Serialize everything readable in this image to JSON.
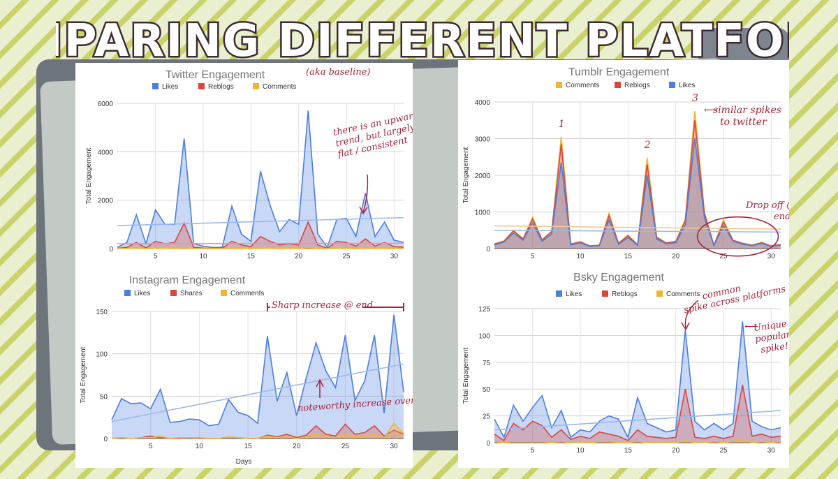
{
  "page_title": "COMPARING DIFFERENT PLATFORMS",
  "colors": {
    "blue": "#4a7ee0",
    "red": "#d9473d",
    "yellow": "#f2b531",
    "annot": "#a7243a"
  },
  "chart_data": [
    {
      "id": "twitter",
      "type": "area",
      "title": "Twitter Engagement",
      "xlabel": "",
      "ylabel": "Total Engagement",
      "xlim": [
        1,
        31
      ],
      "ylim": [
        0,
        6000
      ],
      "yticks": [
        0,
        2000,
        4000,
        6000
      ],
      "xticks": [
        5,
        10,
        15,
        20,
        25,
        30
      ],
      "legend": [
        "Likes",
        "Reblogs",
        "Comments"
      ],
      "x": [
        1,
        2,
        3,
        4,
        5,
        6,
        7,
        8,
        9,
        10,
        11,
        12,
        13,
        14,
        15,
        16,
        17,
        18,
        19,
        20,
        21,
        22,
        23,
        24,
        25,
        26,
        27,
        28,
        29,
        30,
        31
      ],
      "series": [
        {
          "name": "Likes",
          "color": "#4a7ee0",
          "values": [
            50,
            250,
            1400,
            200,
            1600,
            1000,
            1000,
            4550,
            200,
            100,
            50,
            50,
            1750,
            600,
            300,
            3200,
            1800,
            700,
            1200,
            1000,
            5700,
            600,
            50,
            1200,
            1250,
            500,
            2300,
            500,
            1100,
            350,
            250
          ]
        },
        {
          "name": "Reblogs",
          "color": "#d9473d",
          "values": [
            10,
            50,
            250,
            30,
            300,
            200,
            250,
            1050,
            50,
            20,
            10,
            10,
            300,
            150,
            80,
            500,
            300,
            150,
            200,
            150,
            1100,
            150,
            10,
            300,
            250,
            100,
            400,
            100,
            250,
            80,
            60
          ]
        },
        {
          "name": "Comments",
          "color": "#f2b531",
          "values": [
            2,
            5,
            10,
            3,
            10,
            5,
            5,
            20,
            3,
            2,
            1,
            1,
            8,
            3,
            2,
            12,
            6,
            3,
            5,
            4,
            25,
            3,
            1,
            6,
            5,
            3,
            10,
            3,
            5,
            2,
            2
          ]
        }
      ],
      "trend": {
        "start": 950,
        "end": 1280,
        "color": "#9bb8ee"
      },
      "trend2": {
        "start": 200,
        "end": 220,
        "color": "#e59a94"
      },
      "annotation_title": "(aka baseline)",
      "annotation": [
        "there is an upwards",
        "trend, but largely",
        "flat / consistent"
      ]
    },
    {
      "id": "instagram",
      "type": "area",
      "title": "Instagram Engagement",
      "xlabel": "Days",
      "ylabel": "Total Engagement",
      "xlim": [
        1,
        31
      ],
      "ylim": [
        0,
        150
      ],
      "yticks": [
        0,
        50,
        100,
        150
      ],
      "xticks": [
        5,
        10,
        15,
        20,
        25,
        30
      ],
      "legend": [
        "Likes",
        "Shares",
        "Comments"
      ],
      "x": [
        1,
        2,
        3,
        4,
        5,
        6,
        7,
        8,
        9,
        10,
        11,
        12,
        13,
        14,
        15,
        16,
        17,
        18,
        19,
        20,
        21,
        22,
        23,
        24,
        25,
        26,
        27,
        28,
        29,
        30,
        31
      ],
      "series": [
        {
          "name": "Likes",
          "color": "#4a7ee0",
          "values": [
            22,
            47,
            41,
            42,
            35,
            58,
            19,
            20,
            23,
            22,
            15,
            17,
            46,
            31,
            27,
            18,
            121,
            44,
            78,
            27,
            72,
            113,
            80,
            60,
            122,
            45,
            68,
            122,
            30,
            146,
            55
          ]
        },
        {
          "name": "Shares",
          "color": "#d9473d",
          "values": [
            0,
            1,
            0,
            1,
            3,
            1,
            0,
            0,
            1,
            0,
            0,
            0,
            2,
            1,
            0,
            0,
            4,
            2,
            5,
            1,
            4,
            15,
            5,
            3,
            17,
            5,
            7,
            15,
            3,
            10,
            5
          ]
        },
        {
          "name": "Comments",
          "color": "#f2b531",
          "values": [
            0,
            1,
            0,
            1,
            1,
            3,
            0,
            1,
            1,
            1,
            0,
            0,
            2,
            1,
            0,
            0,
            3,
            1,
            2,
            0,
            2,
            6,
            2,
            1,
            5,
            2,
            3,
            5,
            1,
            18,
            6
          ]
        }
      ],
      "trend": {
        "start": 20,
        "end": 88,
        "color": "#9bb8ee"
      },
      "annotation_top": "Sharp increase @ end",
      "annotation": "noteworthy increase over time"
    },
    {
      "id": "tumblr",
      "type": "area",
      "title": "Tumblr Engagement",
      "xlabel": "",
      "ylabel": "Total Engagement",
      "xlim": [
        1,
        31
      ],
      "ylim": [
        0,
        4000
      ],
      "yticks": [
        0,
        1000,
        2000,
        3000,
        4000
      ],
      "xticks": [
        5,
        10,
        15,
        20,
        25,
        30
      ],
      "legend": [
        "Comments",
        "Reblogs",
        "Likes"
      ],
      "x": [
        1,
        2,
        3,
        4,
        5,
        6,
        7,
        8,
        9,
        10,
        11,
        12,
        13,
        14,
        15,
        16,
        17,
        18,
        19,
        20,
        21,
        22,
        23,
        24,
        25,
        26,
        27,
        28,
        29,
        30,
        31
      ],
      "series": [
        {
          "name": "Likes",
          "color": "#4a7ee0",
          "values": [
            100,
            180,
            420,
            230,
            700,
            200,
            400,
            2350,
            100,
            160,
            60,
            80,
            780,
            120,
            300,
            90,
            2000,
            260,
            130,
            160,
            650,
            3000,
            850,
            80,
            620,
            200,
            120,
            80,
            140,
            60,
            100
          ]
        },
        {
          "name": "Reblogs",
          "color": "#d9473d",
          "values": [
            120,
            200,
            480,
            260,
            800,
            230,
            460,
            2850,
            120,
            180,
            70,
            90,
            900,
            140,
            350,
            100,
            2300,
            300,
            150,
            190,
            750,
            3500,
            950,
            90,
            720,
            220,
            140,
            90,
            160,
            70,
            110
          ]
        },
        {
          "name": "Comments",
          "color": "#f2b531",
          "values": [
            130,
            210,
            500,
            270,
            860,
            240,
            480,
            3050,
            130,
            190,
            75,
            95,
            960,
            150,
            370,
            110,
            2480,
            320,
            160,
            200,
            800,
            3750,
            1000,
            95,
            780,
            230,
            150,
            95,
            170,
            75,
            115
          ]
        }
      ],
      "trend": {
        "start": 500,
        "end": 450,
        "color": "#9bb8ee"
      },
      "trend2": {
        "start": 620,
        "end": 530,
        "color": "#f3c88a"
      },
      "spike_labels": [
        "1",
        "2",
        "3"
      ],
      "annotation": [
        "similar spikes",
        "to twitter"
      ],
      "annotation2": [
        "Drop off @",
        "end"
      ]
    },
    {
      "id": "bsky",
      "type": "area",
      "title": "Bsky Engagement",
      "xlabel": "",
      "ylabel": "Total Engagement",
      "xlim": [
        1,
        31
      ],
      "ylim": [
        0,
        125
      ],
      "yticks": [
        0,
        25,
        50,
        75,
        100,
        125
      ],
      "xticks": [
        5,
        10,
        15,
        20,
        25,
        30
      ],
      "legend": [
        "Likes",
        "Reblogs",
        "Comments"
      ],
      "x": [
        1,
        2,
        3,
        4,
        5,
        6,
        7,
        8,
        9,
        10,
        11,
        12,
        13,
        14,
        15,
        16,
        17,
        18,
        19,
        20,
        21,
        22,
        23,
        24,
        25,
        26,
        27,
        28,
        29,
        30,
        31
      ],
      "series": [
        {
          "name": "Likes",
          "color": "#4a7ee0",
          "values": [
            22,
            5,
            35,
            20,
            33,
            44,
            14,
            30,
            5,
            12,
            10,
            20,
            25,
            22,
            5,
            42,
            18,
            14,
            10,
            12,
            105,
            20,
            12,
            18,
            12,
            18,
            113,
            20,
            15,
            12,
            14
          ]
        },
        {
          "name": "Reblogs",
          "color": "#d9473d",
          "values": [
            8,
            2,
            18,
            12,
            20,
            16,
            5,
            12,
            3,
            6,
            4,
            10,
            8,
            6,
            2,
            12,
            6,
            5,
            4,
            5,
            50,
            5,
            4,
            6,
            4,
            6,
            54,
            6,
            8,
            5,
            6
          ]
        },
        {
          "name": "Comments",
          "color": "#f2b531",
          "values": [
            1,
            0,
            1,
            1,
            1,
            1,
            0,
            1,
            0,
            0,
            0,
            1,
            1,
            0,
            0,
            1,
            0,
            0,
            0,
            0,
            2,
            0,
            0,
            1,
            0,
            1,
            3,
            0,
            1,
            0,
            1
          ]
        }
      ],
      "trend": {
        "start": 12,
        "end": 30,
        "color": "#9bb8ee"
      },
      "annotation": [
        "common",
        "spike across platforms"
      ],
      "annotation2": [
        "Unique",
        "popularity",
        "spike!"
      ]
    }
  ]
}
